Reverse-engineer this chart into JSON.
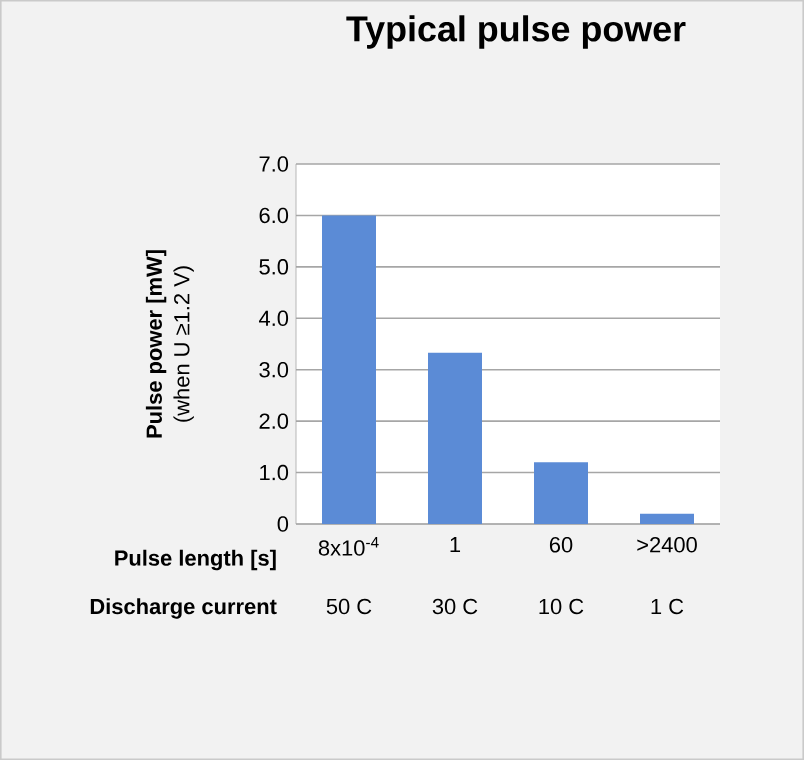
{
  "chart_data": {
    "type": "bar",
    "title": "Typical pulse power",
    "xlabel": "Pulse length [s]",
    "ylabel": "Pulse power [mW]",
    "categories": [
      "8x10$^{-4}$",
      "1",
      "60",
      ">2400"
    ],
    "values": [
      6.0,
      3.33,
      1.2,
      0.2
    ],
    "color": "#5b8bd6",
    "ylim": [
      0,
      7
    ],
    "yticks": [
      0,
      {
        "value": 1,
        "label": "1.0"
      },
      {
        "value": 2,
        "label": "2.0"
      },
      {
        "value": 3,
        "label": "3.0"
      },
      {
        "value": 4,
        "label": "4.0"
      },
      {
        "value": 5,
        "label": "5.0"
      },
      {
        "value": 6,
        "label": "6.0"
      },
      {
        "value": 7,
        "label": "7.0"
      }
    ],
    "grid": "y",
    "annotations": [
      "(when U ≥1.2 V)",
      "Discharge current",
      "50 C",
      "30 C",
      "10 C",
      "1 C"
    ]
  }
}
